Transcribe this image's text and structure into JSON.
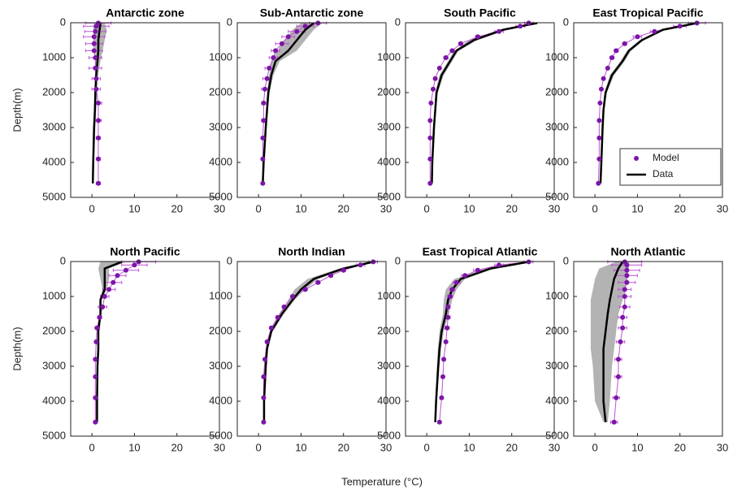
{
  "figure": {
    "xlabel": "Temperature (°C)"
  },
  "chart_data": [
    {
      "type": "line",
      "title": "Antarctic zone",
      "ylabel": "Depth(m)",
      "xlim": [
        -5,
        30
      ],
      "ylim": [
        5000,
        0
      ],
      "xticks": [
        0,
        10,
        20,
        30
      ],
      "yticks": [
        0,
        1000,
        2000,
        3000,
        4000,
        5000
      ],
      "series": [
        {
          "color": "#7b16a6",
          "error_color": "#c050d8",
          "y": [
            10,
            100,
            250,
            400,
            600,
            800,
            1000,
            1300,
            1600,
            1900,
            2300,
            2800,
            3300,
            3900,
            4600
          ],
          "x": [
            1.5,
            1,
            0.8,
            0.5,
            0.5,
            0.5,
            0.8,
            0.8,
            1,
            1,
            1.5,
            1.5,
            1.5,
            1.5,
            1.5
          ],
          "xerr": [
            3,
            3,
            2.5,
            2.5,
            2,
            2,
            1.5,
            1.5,
            1,
            1,
            0.8,
            0.7,
            0.5,
            0.5,
            0.5
          ]
        },
        {
          "color": "#000000",
          "band_color": "#b3b3b3",
          "y": [
            10,
            200,
            500,
            800,
            1100,
            1500,
            2000,
            2500,
            3000,
            4000,
            4600
          ],
          "x": [
            2,
            1.8,
            1.5,
            1.5,
            1.3,
            1,
            0.8,
            0.7,
            0.5,
            0.3,
            0.2
          ],
          "x_lower": [
            0.5,
            0.3,
            0.5,
            0.8,
            0.8,
            0.8,
            0.6,
            0.5,
            0.4,
            0.2,
            0.1
          ],
          "x_upper": [
            3,
            3.5,
            3,
            2.5,
            2,
            1.5,
            1.2,
            1,
            0.8,
            0.5,
            0.3
          ]
        }
      ]
    },
    {
      "type": "line",
      "title": "Sub-Antarctic zone",
      "xlim": [
        -5,
        30
      ],
      "ylim": [
        5000,
        0
      ],
      "xticks": [
        0,
        10,
        20,
        30
      ],
      "yticks": [
        0,
        1000,
        2000,
        3000,
        4000,
        5000
      ],
      "series": [
        {
          "color": "#7b16a6",
          "error_color": "#c050d8",
          "y": [
            10,
            100,
            250,
            400,
            600,
            800,
            1000,
            1300,
            1600,
            1900,
            2300,
            2800,
            3300,
            3900,
            4600
          ],
          "x": [
            14,
            11,
            9,
            7,
            5.5,
            4,
            3.5,
            2.5,
            2,
            1.5,
            1.2,
            1.2,
            1,
            1,
            1
          ],
          "xerr": [
            2,
            2,
            2,
            1.5,
            1.5,
            1,
            1,
            1,
            1,
            0.8,
            0.5,
            0.5,
            0.3,
            0.3,
            0.3
          ]
        },
        {
          "color": "#000000",
          "band_color": "#b3b3b3",
          "y": [
            10,
            200,
            500,
            800,
            1100,
            1500,
            2000,
            2500,
            3000,
            4000,
            4600
          ],
          "x": [
            13,
            11,
            9,
            7,
            4,
            3,
            2.3,
            2,
            1.7,
            1.2,
            1
          ],
          "x_lower": [
            10,
            8,
            6,
            4.5,
            3,
            2.5,
            2,
            1.8,
            1.5,
            1,
            0.9
          ],
          "x_upper": [
            15,
            13,
            11,
            9,
            5,
            3.5,
            2.6,
            2.2,
            1.9,
            1.4,
            1.1
          ]
        }
      ]
    },
    {
      "type": "line",
      "title": "South Pacific",
      "xlim": [
        -5,
        30
      ],
      "ylim": [
        5000,
        0
      ],
      "xticks": [
        0,
        10,
        20,
        30
      ],
      "yticks": [
        0,
        1000,
        2000,
        3000,
        4000,
        5000
      ],
      "series": [
        {
          "color": "#7b16a6",
          "error_color": "#c050d8",
          "y": [
            10,
            100,
            250,
            400,
            600,
            800,
            1000,
            1300,
            1600,
            1900,
            2300,
            2800,
            3300,
            3900,
            4600
          ],
          "x": [
            24,
            22,
            17,
            12,
            8,
            6,
            4.5,
            3,
            2,
            1.5,
            1,
            0.8,
            0.8,
            0.8,
            0.8
          ],
          "xerr": [
            1,
            1,
            1,
            0.5,
            0.5,
            0.5,
            0.5,
            0.3,
            0.3,
            0.3,
            0.2,
            0.2,
            0.2,
            0.2,
            0.2
          ]
        },
        {
          "color": "#000000",
          "band_color": "#b3b3b3",
          "y": [
            10,
            200,
            500,
            800,
            1100,
            1500,
            2000,
            2500,
            3000,
            4000,
            4600
          ],
          "x": [
            26,
            18,
            11,
            7,
            5.5,
            3.5,
            2.3,
            2,
            1.7,
            1.3,
            1.2
          ],
          "x_lower": [
            25.5,
            17,
            10,
            6.5,
            5,
            3,
            2,
            1.8,
            1.5,
            1.2,
            1.1
          ],
          "x_upper": [
            26.5,
            19,
            12,
            7.5,
            6,
            4,
            2.6,
            2.2,
            1.9,
            1.4,
            1.3
          ]
        }
      ]
    },
    {
      "type": "line",
      "title": "East Tropical Pacific",
      "xlim": [
        -5,
        30
      ],
      "ylim": [
        5000,
        0
      ],
      "xticks": [
        0,
        10,
        20,
        30
      ],
      "yticks": [
        0,
        1000,
        2000,
        3000,
        4000,
        5000
      ],
      "legend": "lower right",
      "series": [
        {
          "name": "Model",
          "color": "#7b16a6",
          "error_color": "#c050d8",
          "y": [
            10,
            100,
            250,
            400,
            600,
            800,
            1000,
            1300,
            1600,
            1900,
            2300,
            2800,
            3300,
            3900,
            4600
          ],
          "x": [
            24,
            20,
            14,
            10,
            7,
            5,
            4,
            3,
            2,
            1.5,
            1.2,
            1,
            1,
            1,
            0.8
          ],
          "xerr": [
            2,
            1.5,
            1,
            1,
            0.5,
            0.5,
            0.5,
            0.3,
            0.3,
            0.3,
            0.2,
            0.2,
            0.2,
            0.2,
            0.2
          ]
        },
        {
          "name": "Data",
          "color": "#000000",
          "band_color": "#b3b3b3",
          "y": [
            10,
            200,
            500,
            800,
            1100,
            1500,
            2000,
            2500,
            3000,
            4000,
            4600
          ],
          "x": [
            24,
            16,
            11,
            8,
            6.5,
            4,
            2.5,
            2,
            1.8,
            1.5,
            1.3
          ],
          "x_lower": [
            23.5,
            15.5,
            10.5,
            7.5,
            6,
            3.5,
            2.2,
            1.8,
            1.6,
            1.4,
            1.2
          ],
          "x_upper": [
            24.5,
            16.5,
            11.5,
            8.5,
            7,
            4.5,
            2.8,
            2.2,
            2,
            1.6,
            1.4
          ]
        }
      ]
    },
    {
      "type": "line",
      "title": "North Pacific",
      "ylabel": "Depth(m)",
      "xlim": [
        -5,
        30
      ],
      "ylim": [
        5000,
        0
      ],
      "xticks": [
        0,
        10,
        20,
        30
      ],
      "yticks": [
        0,
        1000,
        2000,
        3000,
        4000,
        5000
      ],
      "series": [
        {
          "color": "#7b16a6",
          "error_color": "#c050d8",
          "y": [
            10,
            100,
            250,
            400,
            600,
            800,
            1000,
            1300,
            1600,
            1900,
            2300,
            2800,
            3300,
            3900,
            4600
          ],
          "x": [
            11,
            10,
            8,
            6,
            5,
            4,
            3,
            2.5,
            1.8,
            1.2,
            1,
            0.8,
            0.8,
            0.8,
            0.8
          ],
          "xerr": [
            4,
            3,
            3,
            2,
            2,
            1.5,
            1,
            1,
            0.5,
            0.5,
            0.3,
            0.3,
            0.2,
            0.2,
            0.2
          ]
        },
        {
          "color": "#000000",
          "band_color": "#b3b3b3",
          "y": [
            10,
            200,
            500,
            800,
            1100,
            1500,
            2000,
            2500,
            3000,
            4000,
            4600
          ],
          "x": [
            7,
            3,
            3,
            3,
            2,
            2,
            1.5,
            1.5,
            1.3,
            1.2,
            1.2
          ],
          "x_lower": [
            2,
            1.5,
            2,
            2.5,
            1.8,
            1.8,
            1.4,
            1.4,
            1.2,
            1.1,
            1.1
          ],
          "x_upper": [
            8,
            4,
            4,
            3.5,
            2.3,
            2.2,
            1.6,
            1.6,
            1.4,
            1.3,
            1.3
          ]
        }
      ]
    },
    {
      "type": "line",
      "title": "North Indian",
      "xlim": [
        -5,
        30
      ],
      "ylim": [
        5000,
        0
      ],
      "xticks": [
        0,
        10,
        20,
        30
      ],
      "yticks": [
        0,
        1000,
        2000,
        3000,
        4000,
        5000
      ],
      "series": [
        {
          "color": "#7b16a6",
          "error_color": "#c050d8",
          "y": [
            10,
            100,
            250,
            400,
            600,
            800,
            1000,
            1300,
            1600,
            1900,
            2300,
            2800,
            3300,
            3900,
            4600
          ],
          "x": [
            27,
            24,
            20,
            17,
            14,
            11,
            8,
            6,
            4.5,
            3,
            2,
            1.5,
            1.2,
            1.2,
            1.2
          ],
          "xerr": [
            1,
            1,
            0.5,
            0.5,
            0.5,
            0.5,
            0.3,
            0.3,
            0.3,
            0.2,
            0.2,
            0.2,
            0.2,
            0.2,
            0.2
          ]
        },
        {
          "color": "#000000",
          "band_color": "#b3b3b3",
          "y": [
            10,
            200,
            500,
            800,
            1100,
            1500,
            2000,
            2500,
            3000,
            4000,
            4600
          ],
          "x": [
            27,
            20,
            13,
            10,
            8,
            5.5,
            3,
            2,
            1.7,
            1.3,
            1.3
          ],
          "x_lower": [
            26.5,
            19,
            11.5,
            8.5,
            7,
            5,
            2.7,
            1.8,
            1.6,
            1.2,
            1.2
          ],
          "x_upper": [
            27.5,
            21,
            14,
            11,
            8.5,
            6,
            3.3,
            2.2,
            1.8,
            1.4,
            1.4
          ]
        }
      ]
    },
    {
      "type": "line",
      "title": "East Tropical Atlantic",
      "xlim": [
        -5,
        30
      ],
      "ylim": [
        5000,
        0
      ],
      "xticks": [
        0,
        10,
        20,
        30
      ],
      "yticks": [
        0,
        1000,
        2000,
        3000,
        4000,
        5000
      ],
      "series": [
        {
          "color": "#7b16a6",
          "error_color": "#c050d8",
          "y": [
            10,
            100,
            250,
            400,
            600,
            800,
            1000,
            1300,
            1600,
            1900,
            2300,
            2800,
            3300,
            3900,
            4600
          ],
          "x": [
            24,
            17,
            12,
            9,
            7,
            6,
            5.5,
            5,
            5,
            4.8,
            4.5,
            4,
            3.8,
            3.5,
            3
          ],
          "xerr": [
            1,
            1,
            1,
            0.8,
            0.8,
            0.6,
            0.6,
            0.5,
            0.5,
            0.5,
            0.4,
            0.4,
            0.4,
            0.4,
            0.4
          ]
        },
        {
          "color": "#000000",
          "band_color": "#b3b3b3",
          "y": [
            10,
            200,
            500,
            800,
            1100,
            1500,
            2000,
            2500,
            3000,
            4000,
            4600
          ],
          "x": [
            24,
            15,
            8,
            6,
            5,
            4.5,
            3.5,
            3,
            2.7,
            2.2,
            2
          ],
          "x_lower": [
            23.5,
            14,
            6.5,
            4.5,
            4,
            3.8,
            3,
            2.6,
            2.4,
            2,
            1.8
          ],
          "x_upper": [
            24.5,
            16,
            9,
            7,
            6,
            5.2,
            4,
            3.4,
            3,
            2.4,
            2.2
          ]
        }
      ]
    },
    {
      "type": "line",
      "title": "North Atlantic",
      "xlim": [
        -5,
        30
      ],
      "ylim": [
        5000,
        0
      ],
      "xticks": [
        0,
        10,
        20,
        30
      ],
      "yticks": [
        0,
        1000,
        2000,
        3000,
        4000,
        5000
      ],
      "series": [
        {
          "color": "#7b16a6",
          "error_color": "#c050d8",
          "y": [
            10,
            100,
            250,
            400,
            600,
            800,
            1000,
            1300,
            1600,
            1900,
            2300,
            2800,
            3300,
            3900,
            4600
          ],
          "x": [
            7,
            7.5,
            7.5,
            7.5,
            7.5,
            7,
            7,
            7,
            6.5,
            6.5,
            6,
            5.5,
            5.5,
            5,
            4.5
          ],
          "xerr": [
            4,
            3.5,
            3,
            2.5,
            2,
            1.5,
            1.5,
            1.2,
            1,
            1,
            1,
            0.8,
            0.8,
            0.8,
            0.8
          ]
        },
        {
          "color": "#000000",
          "band_color": "#b3b3b3",
          "y": [
            10,
            200,
            500,
            800,
            1100,
            1500,
            2000,
            2500,
            3000,
            4000,
            4600
          ],
          "x": [
            6.5,
            5.5,
            4.5,
            4,
            3.5,
            3,
            2.5,
            2,
            2,
            2,
            2.5
          ],
          "x_lower": [
            5,
            1,
            0,
            -0.5,
            -1,
            -1,
            -1,
            -1,
            -0.5,
            0,
            2
          ],
          "x_upper": [
            8,
            8,
            7.5,
            7,
            6.5,
            5.5,
            5,
            4.5,
            4,
            3.5,
            3
          ]
        }
      ]
    }
  ]
}
